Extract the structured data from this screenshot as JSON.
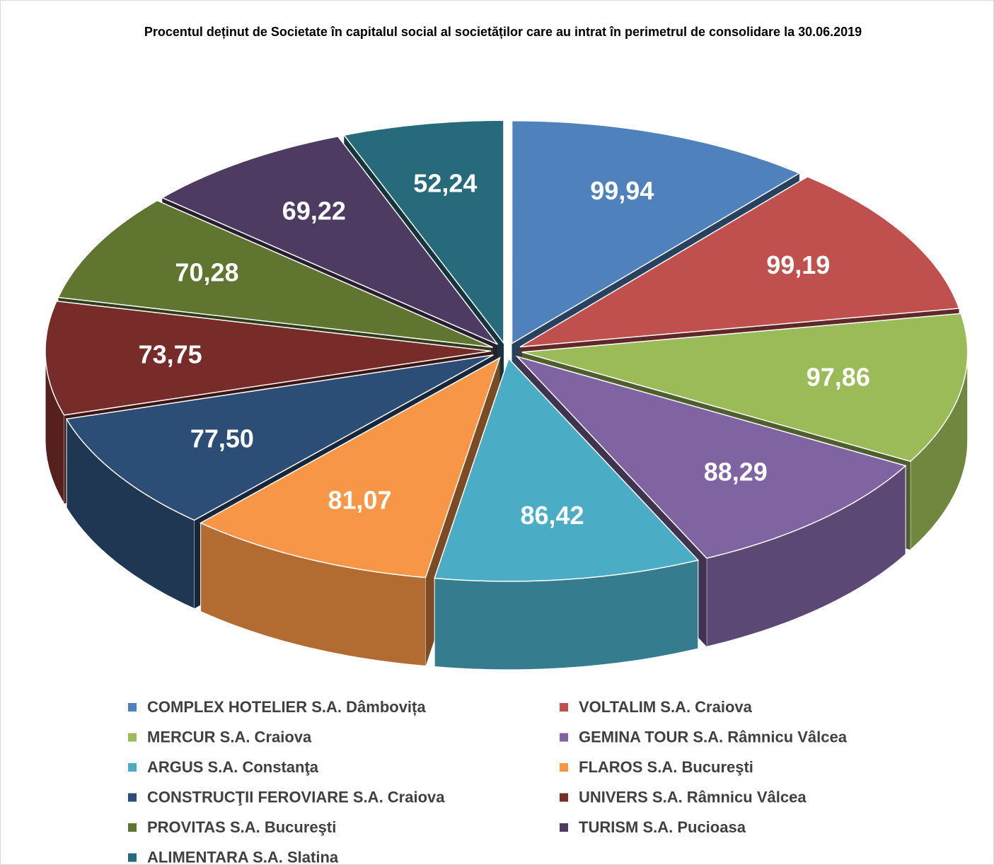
{
  "chart_data": {
    "type": "pie",
    "title": "Procentul deținut de Societate în capitalul social al societăților care au intrat în perimetrul de consolidare la 30.06.2019",
    "categories": [
      "COMPLEX HOTELIER S.A. Dâmbovița",
      "VOLTALIM S.A. Craiova",
      "MERCUR S.A. Craiova",
      "GEMINA TOUR S.A. Râmnicu Vâlcea",
      "ARGUS S.A. Constanţa",
      "FLAROS S.A. Bucureşti",
      "CONSTRUCŢII FEROVIARE S.A. Craiova",
      "UNIVERS S.A. Râmnicu Vâlcea",
      "PROVITAS S.A. Bucureşti",
      "TURISM S.A. Pucioasa",
      "ALIMENTARA S.A. Slatina"
    ],
    "values": [
      99.94,
      99.19,
      97.86,
      88.29,
      86.42,
      81.07,
      77.5,
      73.75,
      70.28,
      69.22,
      52.24
    ],
    "value_labels": [
      "99,94",
      "99,19",
      "97,86",
      "88,29",
      "86,42",
      "81,07",
      "77,50",
      "73,75",
      "70,28",
      "69,22",
      "52,24"
    ],
    "colors": [
      "#4f81bd",
      "#c0504d",
      "#9bbb59",
      "#8064a2",
      "#4bacc6",
      "#f79646",
      "#2c4d75",
      "#772c2a",
      "#5f7530",
      "#4d3b62",
      "#276a7c"
    ],
    "legend": "bottom"
  }
}
